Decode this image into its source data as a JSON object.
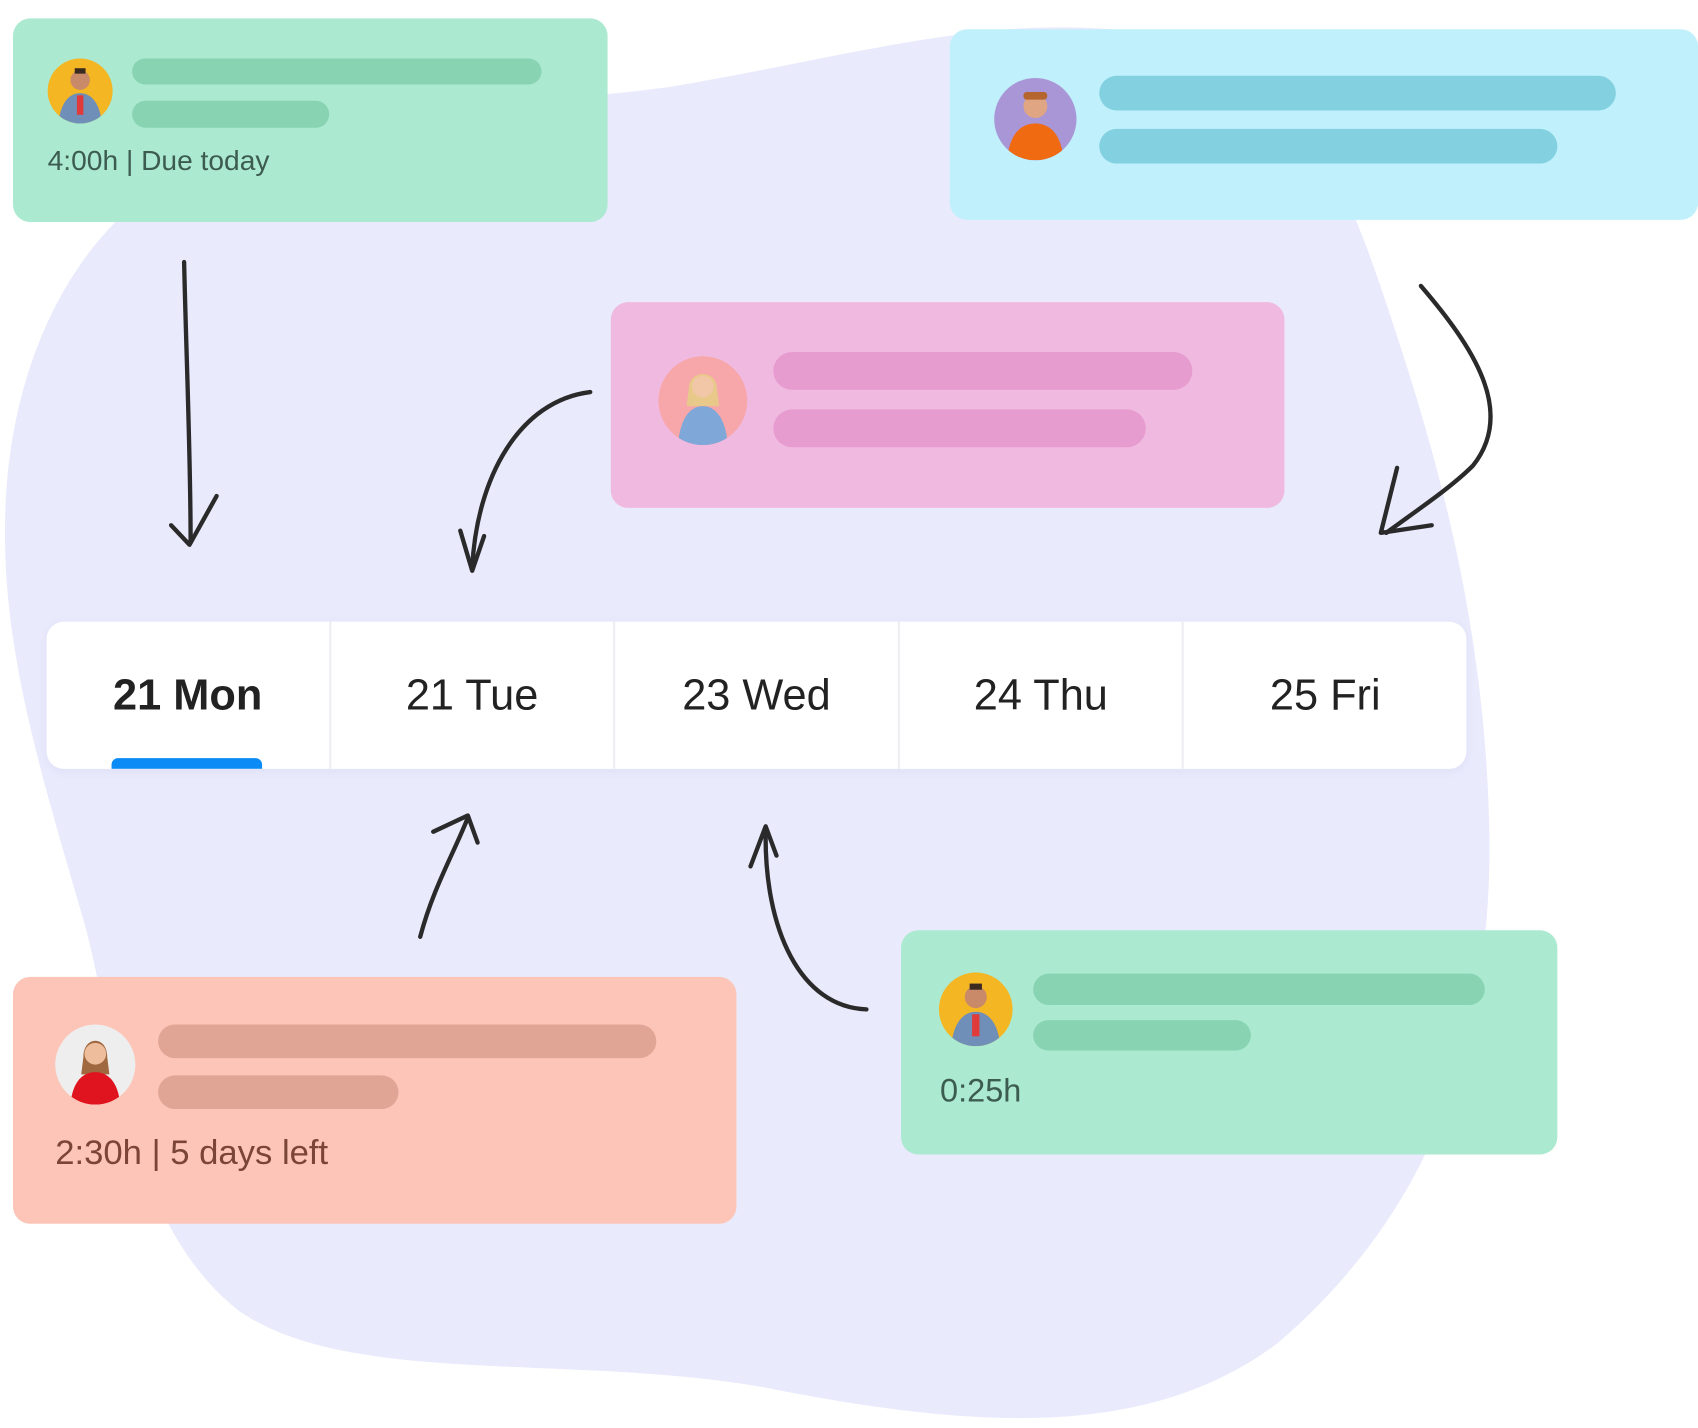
{
  "colors": {
    "background_blob": "#E9EAFC",
    "green_card": "#ABE9D0",
    "green_bar": "#88D3B2",
    "cyan_card": "#C0F0FB",
    "cyan_bar": "#82D0E0",
    "pink_card": "#F0BAE0",
    "pink_bar": "#E79CCF",
    "salmon_card": "#FCC5B8",
    "salmon_bar": "#E1A596",
    "active_tab_indicator": "#0A8BF5",
    "arrow": "#2A2A2A"
  },
  "cards": [
    {
      "id": "task-green-top",
      "meta": "4:00h | Due today",
      "avatar": "man-denim-jacket-avatar"
    },
    {
      "id": "task-cyan",
      "meta": "",
      "avatar": "man-orange-sweater-avatar"
    },
    {
      "id": "task-pink",
      "meta": "",
      "avatar": "woman-blue-sweater-avatar"
    },
    {
      "id": "task-salmon",
      "meta": "2:30h | 5 days left",
      "avatar": "woman-red-top-avatar"
    },
    {
      "id": "task-green-bottom",
      "meta": "0:25h",
      "avatar": "man-denim-jacket-avatar"
    }
  ],
  "tabs": [
    {
      "label": "21 Mon",
      "active": true
    },
    {
      "label": "21 Tue",
      "active": false
    },
    {
      "label": "23 Wed",
      "active": false
    },
    {
      "label": "24 Thu",
      "active": false
    },
    {
      "label": "25 Fri",
      "active": false
    }
  ]
}
